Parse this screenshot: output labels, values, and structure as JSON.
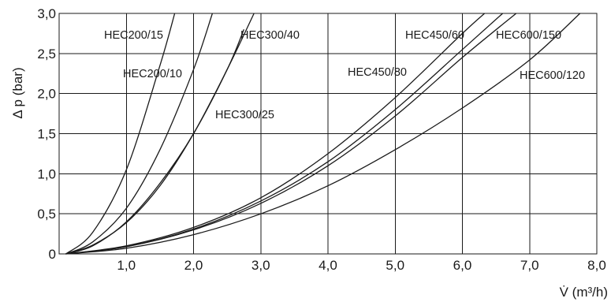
{
  "chart_data": {
    "type": "line",
    "title": "",
    "xlabel": "V̇ (m³/h)",
    "ylabel": "Δ p (bar)",
    "xlim": [
      0,
      8
    ],
    "ylim": [
      0,
      3
    ],
    "x_ticks": [
      "1,0",
      "2,0",
      "3,0",
      "4,0",
      "5,0",
      "6,0",
      "7,0",
      "8,0"
    ],
    "y_ticks": [
      "0",
      "0,5",
      "1,0",
      "1,5",
      "2,0",
      "2,5",
      "3,0"
    ],
    "grid": true,
    "legend": "none",
    "series": [
      {
        "name": "HEC200/15",
        "x": [
          0.1,
          0.5,
          1.0,
          1.5,
          1.72
        ],
        "y": [
          0.0,
          0.27,
          1.05,
          2.35,
          3.0
        ]
      },
      {
        "name": "HEC200/10",
        "x": [
          0.1,
          0.5,
          1.0,
          1.5,
          2.0,
          2.28
        ],
        "y": [
          0.0,
          0.15,
          0.57,
          1.3,
          2.3,
          3.0
        ]
      },
      {
        "name": "HEC300/40",
        "x": [
          0.1,
          0.5,
          1.0,
          1.5,
          2.0,
          2.5,
          2.9
        ],
        "y": [
          0.0,
          0.11,
          0.39,
          0.85,
          1.5,
          2.3,
          3.0
        ]
      },
      {
        "name": "HEC300/25",
        "x": [
          0.1,
          0.5,
          1.0,
          1.5,
          2.0,
          2.5,
          2.75
        ],
        "y": [
          0.0,
          0.1,
          0.4,
          0.88,
          1.5,
          2.3,
          2.8
        ]
      },
      {
        "name": "HEC450/60",
        "x": [
          0.1,
          1.0,
          2.0,
          3.0,
          4.0,
          5.0,
          6.0,
          6.33
        ],
        "y": [
          0.0,
          0.1,
          0.33,
          0.7,
          1.25,
          1.95,
          2.75,
          3.0
        ]
      },
      {
        "name": "HEC450/80",
        "x": [
          0.1,
          1.0,
          2.0,
          3.0,
          4.0,
          5.0,
          6.0,
          6.6
        ],
        "y": [
          0.0,
          0.09,
          0.31,
          0.66,
          1.15,
          1.8,
          2.55,
          3.0
        ]
      },
      {
        "name": "HEC600/150",
        "x": [
          0.1,
          1.0,
          2.0,
          3.0,
          4.0,
          5.0,
          6.0,
          6.8
        ],
        "y": [
          0.0,
          0.09,
          0.3,
          0.63,
          1.1,
          1.72,
          2.45,
          3.0
        ]
      },
      {
        "name": "HEC600/120",
        "x": [
          0.1,
          1.0,
          2.0,
          3.0,
          4.0,
          5.0,
          6.0,
          7.0,
          7.75
        ],
        "y": [
          0.0,
          0.07,
          0.24,
          0.5,
          0.85,
          1.3,
          1.82,
          2.42,
          3.0
        ]
      }
    ]
  }
}
